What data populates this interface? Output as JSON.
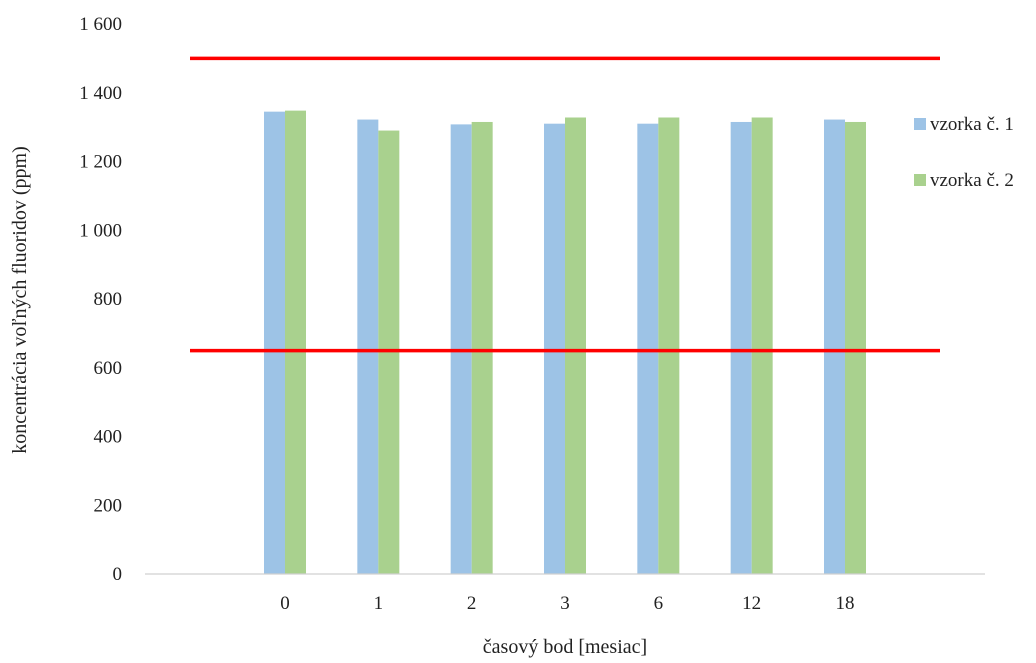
{
  "chart_data": {
    "type": "bar",
    "title": "",
    "xlabel": "časový bod [mesiac]",
    "ylabel": "koncentrácia voľných fluoridov (ppm)",
    "ylim": [
      0,
      1600
    ],
    "y_ticks": [
      0,
      200,
      400,
      600,
      800,
      1000,
      1200,
      1400,
      1600
    ],
    "y_tick_labels": [
      "0",
      "200",
      "400",
      "600",
      "800",
      "1 000",
      "1 200",
      "1 400",
      "1 600"
    ],
    "categories": [
      "0",
      "1",
      "2",
      "3",
      "6",
      "12",
      "18"
    ],
    "series": [
      {
        "name": "vzorka č. 1",
        "color": "#9dc3e6",
        "values": [
          1345,
          1322,
          1308,
          1310,
          1310,
          1315,
          1322
        ]
      },
      {
        "name": "vzorka č. 2",
        "color": "#a9d18e",
        "values": [
          1348,
          1290,
          1315,
          1328,
          1328,
          1328,
          1315
        ]
      }
    ],
    "reference_lines": [
      {
        "value": 1500,
        "color": "#ff0000"
      },
      {
        "value": 650,
        "color": "#ff0000"
      }
    ],
    "grid": false,
    "legend_position": "right"
  }
}
